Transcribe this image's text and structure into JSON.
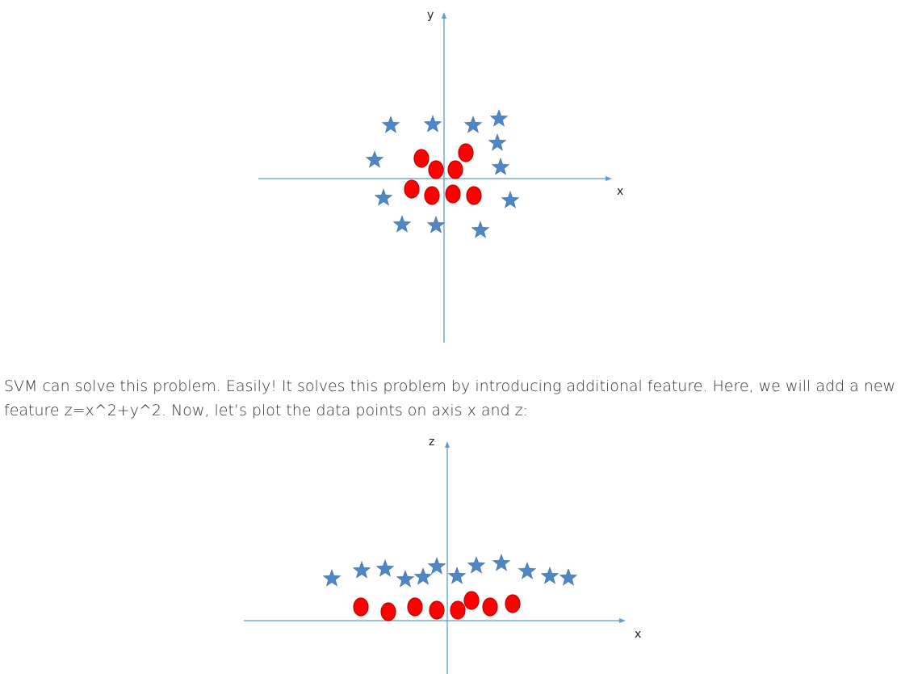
{
  "figure_1": {
    "horizontal_axis_label": "x",
    "vertical_axis_label": "y",
    "marker_colors": {
      "star": "#4f86c6",
      "circle": "#ff0000",
      "circle_outline": "#c00000",
      "axis": "#5b9bd5"
    }
  },
  "paragraph": {
    "text": "SVM can solve this problem. Easily! It solves this problem by introducing additional feature. Here, we will add a new feature z=x^2+y^2. Now, let’s plot the data points on axis x and z:"
  },
  "figure_2": {
    "horizontal_axis_label": "x",
    "vertical_axis_label": "z"
  }
}
